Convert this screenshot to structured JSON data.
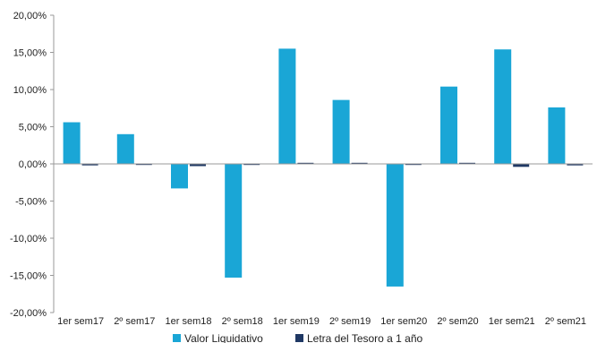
{
  "chart_data": {
    "type": "bar",
    "categories": [
      "1er sem17",
      "2º sem17",
      "1er sem18",
      "2º sem18",
      "1er sem19",
      "2º sem19",
      "1er sem20",
      "2º sem20",
      "1er sem21",
      "2º sem21"
    ],
    "series": [
      {
        "name": "Valor Liquidativo",
        "color": "#1aa6d6",
        "values": [
          5.6,
          4.0,
          -3.3,
          -15.3,
          15.5,
          8.6,
          -16.5,
          10.4,
          15.4,
          7.6
        ]
      },
      {
        "name": "Letra del Tesoro a 1 año",
        "color": "#1f3864",
        "values": [
          -0.2,
          -0.1,
          -0.3,
          -0.1,
          0.1,
          0.1,
          -0.1,
          0.1,
          -0.4,
          -0.2
        ]
      }
    ],
    "ylim": [
      -20,
      20
    ],
    "yticks": [
      20,
      15,
      10,
      5,
      0,
      -5,
      -10,
      -15,
      -20
    ],
    "ytick_labels": [
      "20,00%",
      "15,00%",
      "10,00%",
      "5,00%",
      "0,00%",
      "-5,00%",
      "-10,00%",
      "-15,00%",
      "-20,00%"
    ],
    "grid": false,
    "legend_position": "bottom"
  }
}
